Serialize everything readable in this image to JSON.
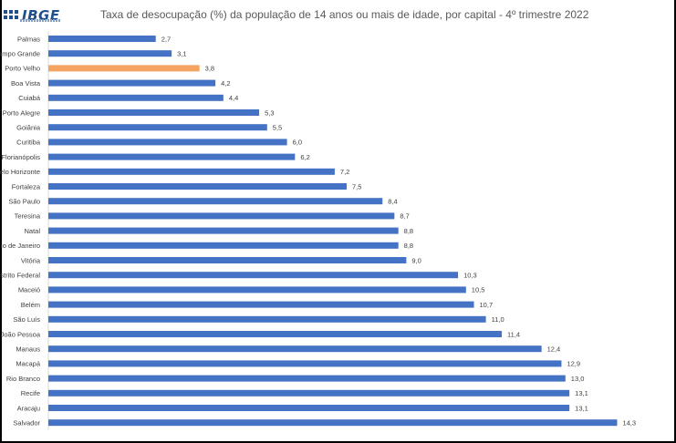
{
  "logo": {
    "text": "IBGE"
  },
  "chart_data": {
    "type": "bar",
    "orientation": "horizontal",
    "title": "Taxa de desocupação (%) da população de 14 anos ou mais de idade, por capital - 4º trimestre 2022",
    "xlabel": "",
    "ylabel": "",
    "grid": false,
    "legend": "none",
    "xlim": [
      0,
      15
    ],
    "colors": {
      "default": "#4472c4",
      "highlight": "#f4a460"
    },
    "highlight_category": "Porto Velho",
    "categories": [
      "Palmas",
      "Campo Grande",
      "Porto Velho",
      "Boa Vista",
      "Cuiabá",
      "Porto Alegre",
      "Goiânia",
      "Curitiba",
      "Florianópolis",
      "Belo Horizonte",
      "Fortaleza",
      "São Paulo",
      "Teresina",
      "Natal",
      "Rio de Janeiro",
      "Vitória",
      "Distrito Federal",
      "Maceió",
      "Belém",
      "São Luís",
      "João Pessoa",
      "Manaus",
      "Macapá",
      "Rio Branco",
      "Recife",
      "Aracaju",
      "Salvador"
    ],
    "display_categories": [
      "Palmas",
      "ampo Grande",
      "Porto Velho",
      "Boa Vista",
      "Cuiabá",
      "Porto Alegre",
      "Goiânia",
      "Curitiba",
      "Florianópolis",
      "elo Horizonte",
      "Fortaleza",
      "São Paulo",
      "Teresina",
      "Natal",
      "io de Janeiro",
      "Vitória",
      "istrito Federal",
      "Maceió",
      "Belém",
      "São Luís",
      "João Pessoa",
      "Manaus",
      "Macapá",
      "Rio Branco",
      "Recife",
      "Aracaju",
      "Salvador"
    ],
    "values": [
      2.7,
      3.1,
      3.8,
      4.2,
      4.4,
      5.3,
      5.5,
      6.0,
      6.2,
      7.2,
      7.5,
      8.4,
      8.7,
      8.8,
      8.8,
      9.0,
      10.3,
      10.5,
      10.7,
      11.0,
      11.4,
      12.4,
      12.9,
      13.0,
      13.1,
      13.1,
      14.3
    ],
    "value_labels": [
      "2,7",
      "3,1",
      "3,8",
      "4,2",
      "4,4",
      "5,3",
      "5,5",
      "6,0",
      "6,2",
      "7,2",
      "7,5",
      "8,4",
      "8,7",
      "8,8",
      "8,8",
      "9,0",
      "10,3",
      "10,5",
      "10,7",
      "11,0",
      "11,4",
      "12,4",
      "12,9",
      "13,0",
      "13,1",
      "13,1",
      "14,3"
    ]
  }
}
